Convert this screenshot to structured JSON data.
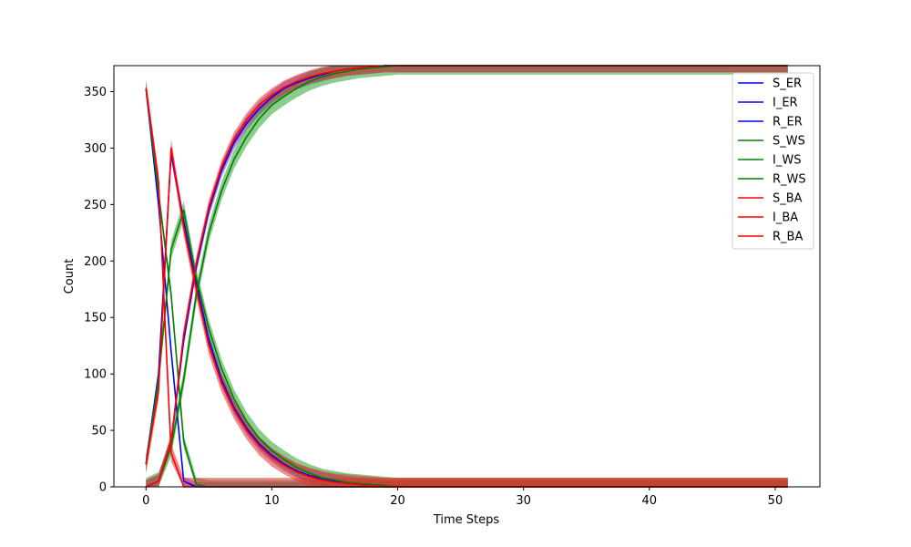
{
  "chart_data": {
    "type": "line",
    "title": "",
    "xlabel": "Time Steps",
    "ylabel": "Count",
    "xlim": [
      -2.55,
      53.55
    ],
    "ylim": [
      0,
      373
    ],
    "xticks": [
      0,
      10,
      20,
      30,
      40,
      50
    ],
    "yticks": [
      0,
      50,
      100,
      150,
      200,
      250,
      300,
      350
    ],
    "grid": false,
    "legend_position": "top-right",
    "colors": {
      "ER": "#0000ff",
      "WS": "#008000",
      "BA": "#ff0000",
      "band_ER": "#7a3fd6",
      "band_WS": "#2ca02c",
      "band_BA": "#e03030"
    },
    "x_range": [
      0,
      51
    ],
    "series": [
      {
        "name": "S_ER",
        "color": "#0000ff",
        "band": 4,
        "values": [
          353,
          250,
          120,
          5,
          0
        ]
      },
      {
        "name": "I_ER",
        "color": "#0000ff",
        "band": 6,
        "values": [
          20,
          100,
          295,
          235,
          180,
          130,
          95,
          70,
          52,
          38,
          28,
          20,
          14,
          10,
          7,
          5,
          3,
          2,
          1,
          0
        ]
      },
      {
        "name": "R_ER",
        "color": "#0000ff",
        "band": 6,
        "values": [
          0,
          5,
          40,
          130,
          195,
          245,
          280,
          305,
          322,
          335,
          345,
          353,
          358,
          362,
          365,
          368,
          370,
          371,
          372,
          373
        ]
      },
      {
        "name": "S_WS",
        "color": "#008000",
        "band": 6,
        "values": [
          353,
          260,
          170,
          40,
          2,
          0
        ]
      },
      {
        "name": "I_WS",
        "color": "#008000",
        "band": 8,
        "values": [
          20,
          95,
          210,
          245,
          185,
          140,
          105,
          78,
          58,
          43,
          32,
          24,
          17,
          12,
          8,
          6,
          4,
          3,
          2,
          1,
          0
        ]
      },
      {
        "name": "R_WS",
        "color": "#008000",
        "band": 8,
        "values": [
          0,
          5,
          35,
          95,
          170,
          225,
          262,
          290,
          310,
          326,
          338,
          346,
          353,
          359,
          363,
          366,
          368,
          370,
          371,
          372,
          373
        ]
      },
      {
        "name": "S_BA",
        "color": "#ff0000",
        "band": 8,
        "values": [
          353,
          270,
          30,
          0
        ]
      },
      {
        "name": "I_BA",
        "color": "#ff0000",
        "band": 8,
        "values": [
          20,
          85,
          300,
          230,
          175,
          125,
          92,
          68,
          50,
          36,
          26,
          19,
          13,
          9,
          6,
          4,
          3,
          2,
          1,
          0
        ]
      },
      {
        "name": "R_BA",
        "color": "#ff0000",
        "band": 6,
        "values": [
          0,
          5,
          40,
          135,
          198,
          248,
          283,
          308,
          325,
          338,
          347,
          354,
          359,
          363,
          366,
          368,
          370,
          371,
          372,
          373
        ]
      }
    ]
  }
}
